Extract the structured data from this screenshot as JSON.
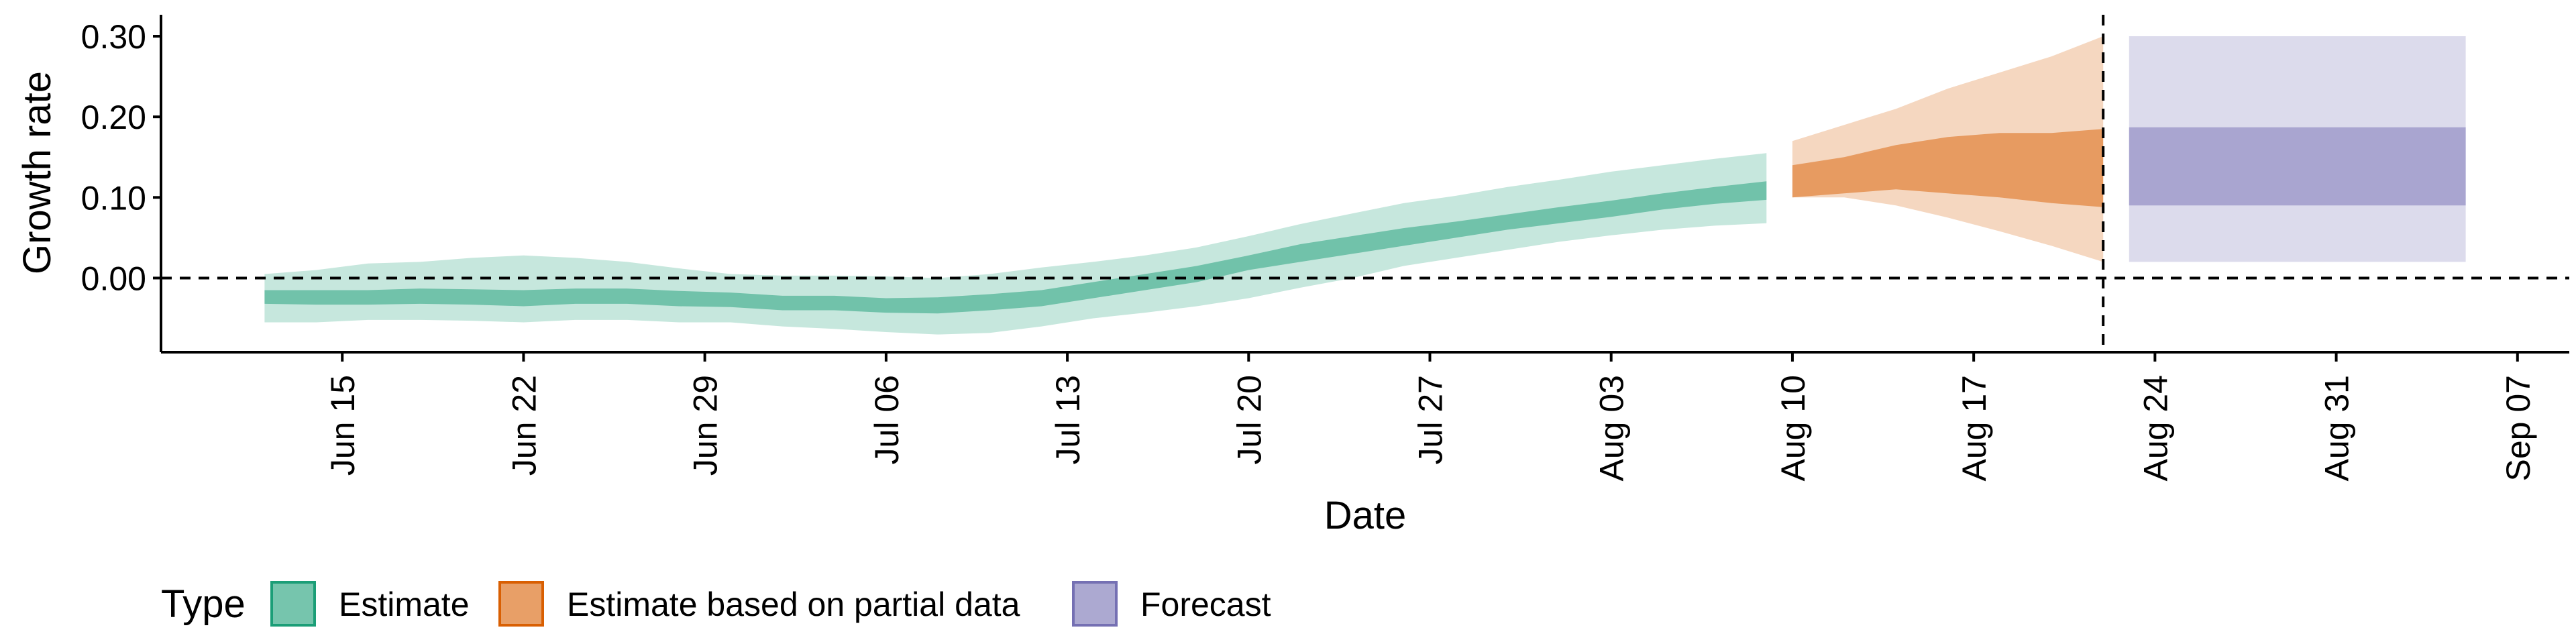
{
  "chart_data": {
    "type": "area",
    "xlabel": "Date",
    "ylabel": "Growth rate",
    "y_ticks": [
      0.0,
      0.1,
      0.2,
      0.3
    ],
    "y_tick_labels": [
      "0.00",
      "0.10",
      "0.20",
      "0.30"
    ],
    "ylim": [
      -0.092,
      0.32
    ],
    "x_ticks": [
      "2020-06-15",
      "2020-06-22",
      "2020-06-29",
      "2020-07-06",
      "2020-07-13",
      "2020-07-20",
      "2020-07-27",
      "2020-08-03",
      "2020-08-10",
      "2020-08-17",
      "2020-08-24",
      "2020-08-31",
      "2020-09-07"
    ],
    "x_tick_labels": [
      "Jun 15",
      "Jun 22",
      "Jun 29",
      "Jul 06",
      "Jul 13",
      "Jul 20",
      "Jul 27",
      "Aug 03",
      "Aug 10",
      "Aug 17",
      "Aug 24",
      "Aug 31",
      "Sep 07"
    ],
    "xlim": [
      "2020-06-08",
      "2020-09-09"
    ],
    "reference_lines": {
      "horizontal_y": 0,
      "vertical_x": "2020-08-22"
    },
    "legend": {
      "title": "Type",
      "position": "bottom-left",
      "items": [
        "Estimate",
        "Estimate based on partial data",
        "Forecast"
      ]
    },
    "series": [
      {
        "name": "Estimate",
        "color": "#1b9e77",
        "dates": [
          "2020-06-12",
          "2020-06-14",
          "2020-06-16",
          "2020-06-18",
          "2020-06-20",
          "2020-06-22",
          "2020-06-24",
          "2020-06-26",
          "2020-06-28",
          "2020-06-30",
          "2020-07-02",
          "2020-07-04",
          "2020-07-06",
          "2020-07-08",
          "2020-07-10",
          "2020-07-12",
          "2020-07-14",
          "2020-07-16",
          "2020-07-18",
          "2020-07-20",
          "2020-07-22",
          "2020-07-24",
          "2020-07-26",
          "2020-07-28",
          "2020-07-30",
          "2020-08-01",
          "2020-08-03",
          "2020-08-05",
          "2020-08-07",
          "2020-08-09"
        ],
        "lower90": [
          -0.055,
          -0.055,
          -0.052,
          -0.052,
          -0.053,
          -0.055,
          -0.052,
          -0.052,
          -0.055,
          -0.055,
          -0.06,
          -0.063,
          -0.067,
          -0.07,
          -0.068,
          -0.06,
          -0.05,
          -0.043,
          -0.035,
          -0.025,
          -0.012,
          0.0,
          0.015,
          0.025,
          0.035,
          0.045,
          0.053,
          0.06,
          0.065,
          0.068
        ],
        "lower50": [
          -0.032,
          -0.033,
          -0.033,
          -0.032,
          -0.033,
          -0.035,
          -0.032,
          -0.032,
          -0.035,
          -0.036,
          -0.04,
          -0.04,
          -0.043,
          -0.044,
          -0.04,
          -0.035,
          -0.025,
          -0.015,
          -0.005,
          0.01,
          0.02,
          0.03,
          0.04,
          0.05,
          0.06,
          0.068,
          0.076,
          0.085,
          0.092,
          0.097
        ],
        "upper50": [
          -0.015,
          -0.015,
          -0.015,
          -0.013,
          -0.014,
          -0.015,
          -0.013,
          -0.013,
          -0.016,
          -0.018,
          -0.022,
          -0.022,
          -0.025,
          -0.024,
          -0.02,
          -0.015,
          -0.005,
          0.005,
          0.015,
          0.028,
          0.042,
          0.052,
          0.062,
          0.07,
          0.079,
          0.088,
          0.096,
          0.105,
          0.113,
          0.12
        ],
        "upper90": [
          0.005,
          0.01,
          0.018,
          0.02,
          0.025,
          0.028,
          0.025,
          0.02,
          0.012,
          0.005,
          0.003,
          0.003,
          0.002,
          0.0,
          0.005,
          0.013,
          0.02,
          0.028,
          0.038,
          0.052,
          0.067,
          0.08,
          0.093,
          0.102,
          0.113,
          0.122,
          0.132,
          0.14,
          0.148,
          0.155
        ]
      },
      {
        "name": "Estimate based on partial data",
        "color": "#d95f02",
        "dates": [
          "2020-08-10",
          "2020-08-12",
          "2020-08-14",
          "2020-08-16",
          "2020-08-18",
          "2020-08-20",
          "2020-08-22"
        ],
        "lower90": [
          0.1,
          0.1,
          0.09,
          0.075,
          0.058,
          0.04,
          0.02
        ],
        "lower50": [
          0.1,
          0.105,
          0.11,
          0.105,
          0.1,
          0.093,
          0.088
        ],
        "upper50": [
          0.14,
          0.15,
          0.165,
          0.175,
          0.18,
          0.18,
          0.185
        ],
        "upper90": [
          0.17,
          0.19,
          0.21,
          0.235,
          0.255,
          0.275,
          0.3
        ]
      },
      {
        "name": "Forecast",
        "color": "#7570b3",
        "dates": [
          "2020-08-23",
          "2020-09-05"
        ],
        "lower90": [
          0.02,
          0.02
        ],
        "lower50": [
          0.09,
          0.09
        ],
        "upper50": [
          0.187,
          0.187
        ],
        "upper90": [
          0.3,
          0.3
        ]
      }
    ]
  }
}
